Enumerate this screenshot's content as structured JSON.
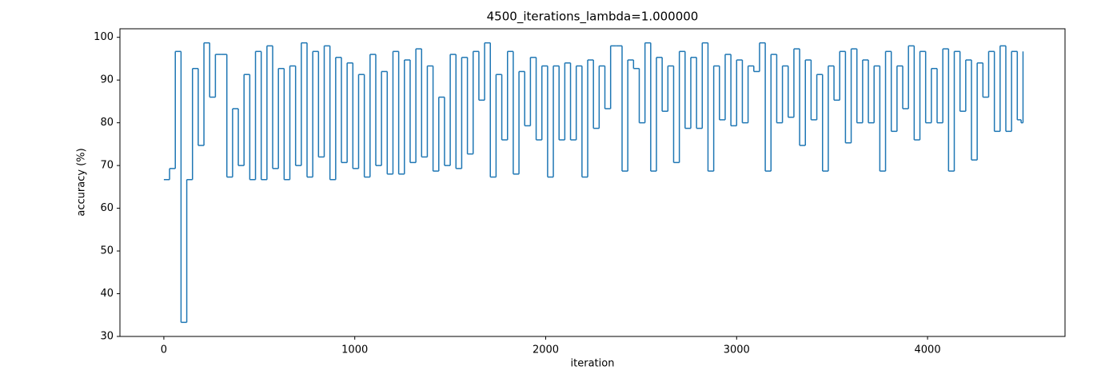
{
  "chart_data": {
    "type": "step-line",
    "title": "4500_iterations_lambda=1.000000",
    "x_label": "iteration",
    "y_label": "accuracy (%)",
    "xlim": [
      -230,
      4720
    ],
    "ylim": [
      30,
      102
    ],
    "xticks": [
      0,
      1000,
      2000,
      3000,
      4000
    ],
    "yticks": [
      30,
      40,
      50,
      60,
      70,
      80,
      90,
      100
    ],
    "series": [
      {
        "color": "#1f77b4",
        "x": [
          0,
          30,
          60,
          90,
          120,
          150,
          180,
          210,
          240,
          270,
          300,
          330,
          360,
          390,
          420,
          450,
          480,
          510,
          540,
          570,
          600,
          630,
          660,
          690,
          720,
          750,
          780,
          810,
          840,
          870,
          900,
          930,
          960,
          990,
          1020,
          1050,
          1080,
          1110,
          1140,
          1170,
          1200,
          1230,
          1260,
          1290,
          1320,
          1350,
          1380,
          1410,
          1440,
          1470,
          1500,
          1530,
          1560,
          1590,
          1620,
          1650,
          1680,
          1710,
          1740,
          1770,
          1800,
          1830,
          1860,
          1890,
          1920,
          1950,
          1980,
          2010,
          2040,
          2070,
          2100,
          2130,
          2160,
          2190,
          2220,
          2250,
          2280,
          2310,
          2340,
          2370,
          2400,
          2430,
          2460,
          2490,
          2520,
          2550,
          2580,
          2610,
          2640,
          2670,
          2700,
          2730,
          2760,
          2790,
          2820,
          2850,
          2880,
          2910,
          2940,
          2970,
          3000,
          3030,
          3060,
          3090,
          3120,
          3150,
          3180,
          3210,
          3240,
          3270,
          3300,
          3330,
          3360,
          3390,
          3420,
          3450,
          3480,
          3510,
          3540,
          3570,
          3600,
          3630,
          3660,
          3690,
          3720,
          3750,
          3780,
          3810,
          3840,
          3870,
          3900,
          3930,
          3960,
          3990,
          4020,
          4050,
          4080,
          4110,
          4140,
          4170,
          4200,
          4230,
          4260,
          4290,
          4320,
          4350,
          4380,
          4410,
          4440,
          4470,
          4490,
          4500
        ],
        "values": [
          66.7,
          69.3,
          96.7,
          33.3,
          66.7,
          92.7,
          74.7,
          98.7,
          86,
          96,
          96,
          67.3,
          83.3,
          70,
          91.3,
          66.7,
          96.7,
          66.7,
          98,
          69.3,
          92.7,
          66.7,
          93.3,
          70,
          98.7,
          67.3,
          96.7,
          72,
          98,
          66.7,
          95.3,
          70.7,
          94,
          69.3,
          91.3,
          67.3,
          96,
          70,
          92,
          68,
          96.7,
          68,
          94.7,
          70.7,
          97.3,
          72,
          93.3,
          68.7,
          86,
          70,
          96,
          69.3,
          95.3,
          72.7,
          96.7,
          85.3,
          98.7,
          67.3,
          91.3,
          76,
          96.7,
          68,
          92,
          79.3,
          95.3,
          76,
          93.3,
          67.3,
          93.3,
          76,
          94,
          76,
          93.3,
          67.3,
          94.7,
          78.7,
          93.3,
          83.3,
          98,
          98,
          68.7,
          94.7,
          92.7,
          80,
          98.7,
          68.7,
          95.3,
          82.7,
          93.3,
          70.7,
          96.7,
          78.7,
          95.3,
          78.7,
          98.7,
          68.7,
          93.3,
          80.7,
          96,
          79.3,
          94.7,
          80,
          93.3,
          92,
          98.7,
          68.7,
          96,
          80,
          93.3,
          81.3,
          97.3,
          74.7,
          94.7,
          80.7,
          91.3,
          68.7,
          93.3,
          85.3,
          96.7,
          75.3,
          97.3,
          80,
          94.7,
          80,
          93.3,
          68.7,
          96.7,
          78,
          93.3,
          83.3,
          98,
          76,
          96.7,
          80,
          92.7,
          80,
          97.3,
          68.7,
          96.7,
          82.7,
          94.7,
          71.3,
          94,
          86,
          96.7,
          78,
          98,
          78,
          96.7,
          80.7,
          80,
          96.7
        ]
      }
    ]
  }
}
